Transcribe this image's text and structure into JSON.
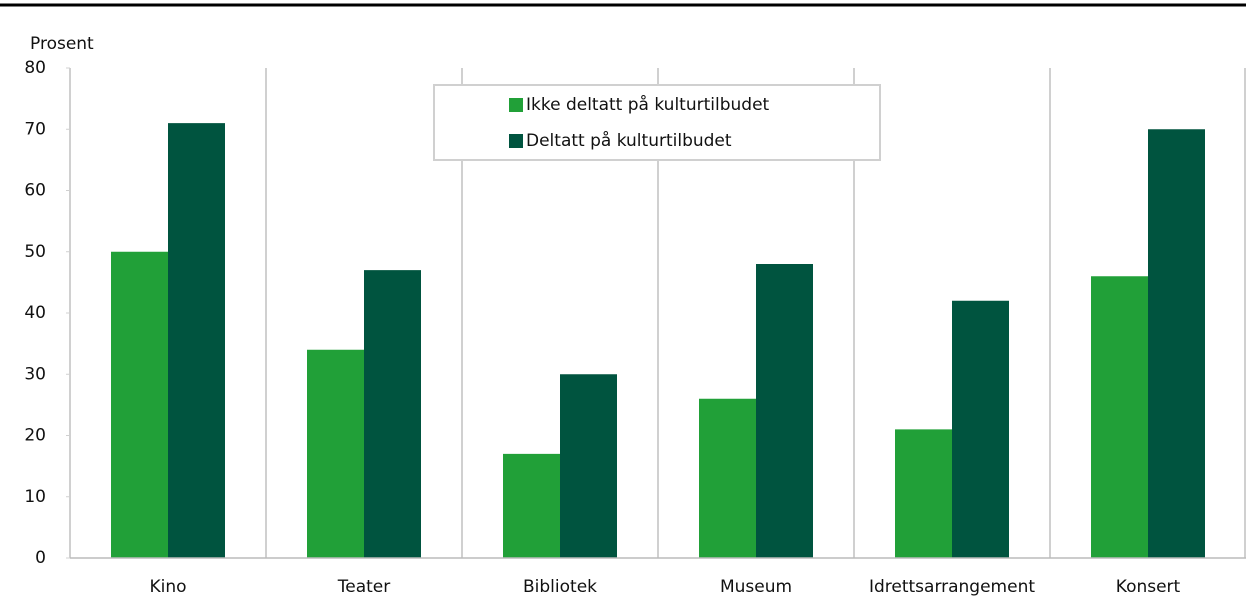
{
  "chart_data": {
    "type": "bar",
    "y_label": "Prosent",
    "categories": [
      "Kino",
      "Teater",
      "Bibliotek",
      "Museum",
      "Idrettsarrangement",
      "Konsert"
    ],
    "series": [
      {
        "name": "Ikke deltatt på kulturtilbudet",
        "color": "#21a038",
        "values": [
          50,
          34,
          17,
          26,
          21,
          46
        ]
      },
      {
        "name": "Deltatt på kulturtilbudet",
        "color": "#00543f",
        "values": [
          71,
          47,
          30,
          48,
          42,
          70
        ]
      }
    ],
    "ylim": [
      0,
      80
    ],
    "yticks": [
      0,
      10,
      20,
      30,
      40,
      50,
      60,
      70,
      80
    ],
    "legend": "top"
  }
}
